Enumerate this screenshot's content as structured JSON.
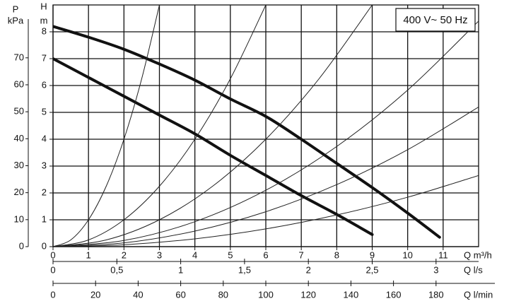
{
  "chart_data": {
    "type": "line",
    "annotation": "400 V~ 50 Hz",
    "xlabel": "Q m³/h",
    "ylabel": "H",
    "yunit": "m",
    "xlim": [
      0,
      12
    ],
    "xticks": [
      0,
      1,
      2,
      3,
      4,
      5,
      6,
      7,
      8,
      9,
      10,
      11
    ],
    "ylim": [
      0,
      9
    ],
    "yticks": [
      0,
      1,
      2,
      3,
      4,
      5,
      6,
      7,
      8
    ],
    "grid": true,
    "pressure_axis": {
      "label": "P",
      "unit": "kPa",
      "ylim": [
        0,
        89.6
      ],
      "yticks": [
        0,
        10,
        20,
        30,
        40,
        50,
        60,
        70
      ]
    },
    "secondary_x_axes": [
      {
        "label": "Q l/s",
        "xlim": [
          0,
          3.3333
        ],
        "xticks": [
          0,
          {
            "value": 0.5,
            "label": "0,5"
          },
          1,
          {
            "value": 1.5,
            "label": "1,5"
          },
          2,
          {
            "value": 2.5,
            "label": "2,5"
          },
          3
        ]
      },
      {
        "label": "Q l/min",
        "xlim": [
          0,
          200
        ],
        "xticks": [
          0,
          20,
          40,
          60,
          80,
          100,
          120,
          140,
          160,
          180
        ]
      }
    ],
    "series": [
      {
        "color": "#111111",
        "width": 4,
        "x": [
          0,
          1,
          2,
          3,
          4,
          5,
          6,
          7,
          8,
          9,
          10,
          10.9
        ],
        "values": [
          8.2,
          7.8,
          7.35,
          6.8,
          6.2,
          5.5,
          4.85,
          4.0,
          3.1,
          2.2,
          1.25,
          0.35
        ]
      },
      {
        "color": "#111111",
        "width": 4,
        "x": [
          0,
          1,
          2,
          3,
          4,
          5,
          6,
          7,
          8,
          9
        ],
        "values": [
          7.0,
          6.3,
          5.6,
          4.9,
          4.2,
          3.4,
          2.65,
          1.9,
          1.2,
          0.45
        ]
      },
      {
        "color": "#222222",
        "width": 1,
        "x": [
          0,
          0.5,
          1,
          1.5,
          2,
          2.5,
          3
        ],
        "values": [
          0,
          0.25,
          1,
          2.25,
          4,
          6.25,
          9
        ]
      },
      {
        "color": "#222222",
        "width": 1,
        "x": [
          0,
          1,
          2,
          3,
          4,
          5,
          6
        ],
        "values": [
          0,
          0.25,
          1,
          2.25,
          4,
          6.25,
          9
        ]
      },
      {
        "color": "#222222",
        "width": 1,
        "x": [
          0,
          1.5,
          3,
          4.5,
          6,
          7.5,
          9
        ],
        "values": [
          0,
          0.25,
          1,
          2.25,
          4,
          6.25,
          9
        ]
      },
      {
        "color": "#222222",
        "width": 1,
        "x": [
          0,
          2,
          4,
          6,
          8,
          10,
          12
        ],
        "values": [
          0,
          0.23,
          0.93,
          2.1,
          3.73,
          5.83,
          8.4
        ]
      },
      {
        "color": "#222222",
        "width": 1,
        "x": [
          0,
          2,
          4,
          6,
          8,
          10,
          12
        ],
        "values": [
          0,
          0.14,
          0.58,
          1.3,
          2.31,
          3.61,
          5.2
        ]
      },
      {
        "color": "#222222",
        "width": 1,
        "x": [
          0,
          2,
          4,
          6,
          8,
          10,
          12
        ],
        "values": [
          0,
          0.07,
          0.29,
          0.66,
          1.18,
          1.84,
          2.65
        ]
      }
    ]
  }
}
